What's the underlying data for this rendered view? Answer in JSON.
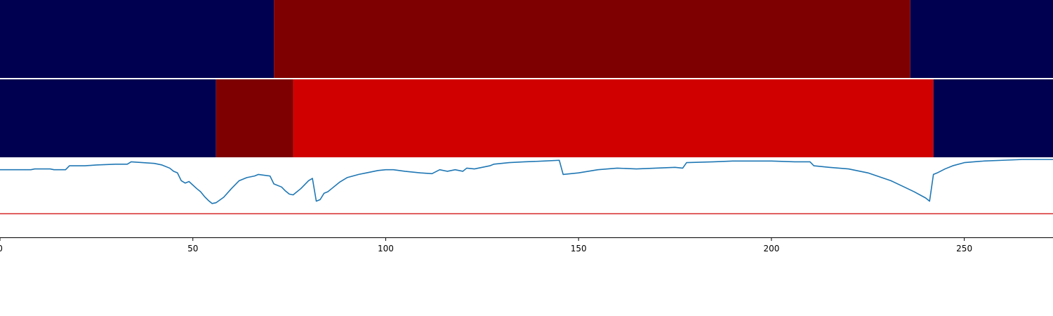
{
  "chart_data": {
    "type": "line",
    "x_ticks": [
      0,
      50,
      100,
      150,
      200,
      250
    ],
    "xlim": [
      0,
      273
    ],
    "color_bands": [
      {
        "segments": [
          {
            "start": 0,
            "end": 71,
            "color": "#000050"
          },
          {
            "start": 71,
            "end": 236,
            "color": "#7f0000"
          },
          {
            "start": 236,
            "end": 273,
            "color": "#000050"
          }
        ]
      },
      {
        "segments": [
          {
            "start": 0,
            "end": 56,
            "color": "#000050"
          },
          {
            "start": 56,
            "end": 76,
            "color": "#7f0000"
          },
          {
            "start": 76,
            "end": 242,
            "color": "#d00000"
          },
          {
            "start": 242,
            "end": 273,
            "color": "#000050"
          }
        ]
      }
    ],
    "line_plot": {
      "ylim": [
        0,
        1
      ],
      "line_color": "#1f77b4",
      "threshold": 0.3,
      "threshold_color": "#d62728",
      "series": [
        [
          0,
          0.86
        ],
        [
          5,
          0.86
        ],
        [
          8,
          0.86
        ],
        [
          9,
          0.87
        ],
        [
          13,
          0.87
        ],
        [
          14,
          0.86
        ],
        [
          17,
          0.86
        ],
        [
          18,
          0.91
        ],
        [
          22,
          0.91
        ],
        [
          25,
          0.92
        ],
        [
          30,
          0.93
        ],
        [
          33,
          0.93
        ],
        [
          34,
          0.96
        ],
        [
          40,
          0.94
        ],
        [
          42,
          0.92
        ],
        [
          44,
          0.88
        ],
        [
          45,
          0.84
        ],
        [
          46,
          0.82
        ],
        [
          47,
          0.72
        ],
        [
          48,
          0.69
        ],
        [
          49,
          0.71
        ],
        [
          51,
          0.62
        ],
        [
          52,
          0.58
        ],
        [
          53,
          0.52
        ],
        [
          54,
          0.47
        ],
        [
          55,
          0.43
        ],
        [
          56,
          0.44
        ],
        [
          58,
          0.51
        ],
        [
          60,
          0.62
        ],
        [
          62,
          0.72
        ],
        [
          64,
          0.76
        ],
        [
          65,
          0.77
        ],
        [
          66,
          0.78
        ],
        [
          67,
          0.8
        ],
        [
          70,
          0.78
        ],
        [
          71,
          0.68
        ],
        [
          73,
          0.64
        ],
        [
          74,
          0.59
        ],
        [
          75,
          0.55
        ],
        [
          76,
          0.54
        ],
        [
          77,
          0.58
        ],
        [
          78,
          0.62
        ],
        [
          79,
          0.67
        ],
        [
          80,
          0.72
        ],
        [
          81,
          0.75
        ],
        [
          82,
          0.46
        ],
        [
          83,
          0.48
        ],
        [
          84,
          0.56
        ],
        [
          85,
          0.58
        ],
        [
          86,
          0.62
        ],
        [
          88,
          0.7
        ],
        [
          90,
          0.76
        ],
        [
          93,
          0.8
        ],
        [
          95,
          0.82
        ],
        [
          98,
          0.85
        ],
        [
          100,
          0.86
        ],
        [
          102,
          0.86
        ],
        [
          105,
          0.84
        ],
        [
          107,
          0.83
        ],
        [
          109,
          0.82
        ],
        [
          112,
          0.81
        ],
        [
          114,
          0.86
        ],
        [
          116,
          0.84
        ],
        [
          118,
          0.86
        ],
        [
          120,
          0.84
        ],
        [
          121,
          0.88
        ],
        [
          123,
          0.87
        ],
        [
          125,
          0.89
        ],
        [
          127,
          0.91
        ],
        [
          128,
          0.93
        ],
        [
          132,
          0.95
        ],
        [
          136,
          0.96
        ],
        [
          141,
          0.97
        ],
        [
          145,
          0.98
        ],
        [
          146,
          0.8
        ],
        [
          150,
          0.82
        ],
        [
          155,
          0.86
        ],
        [
          160,
          0.88
        ],
        [
          165,
          0.87
        ],
        [
          170,
          0.88
        ],
        [
          175,
          0.89
        ],
        [
          177,
          0.88
        ],
        [
          178,
          0.95
        ],
        [
          185,
          0.96
        ],
        [
          190,
          0.97
        ],
        [
          195,
          0.97
        ],
        [
          200,
          0.97
        ],
        [
          206,
          0.96
        ],
        [
          210,
          0.96
        ],
        [
          211,
          0.91
        ],
        [
          215,
          0.89
        ],
        [
          220,
          0.87
        ],
        [
          225,
          0.82
        ],
        [
          228,
          0.77
        ],
        [
          231,
          0.72
        ],
        [
          234,
          0.65
        ],
        [
          237,
          0.58
        ],
        [
          240,
          0.5
        ],
        [
          241,
          0.46
        ],
        [
          242,
          0.8
        ],
        [
          243,
          0.82
        ],
        [
          245,
          0.87
        ],
        [
          247,
          0.91
        ],
        [
          250,
          0.95
        ],
        [
          255,
          0.97
        ],
        [
          260,
          0.98
        ],
        [
          265,
          0.99
        ],
        [
          270,
          0.99
        ],
        [
          273,
          0.99
        ]
      ]
    }
  }
}
